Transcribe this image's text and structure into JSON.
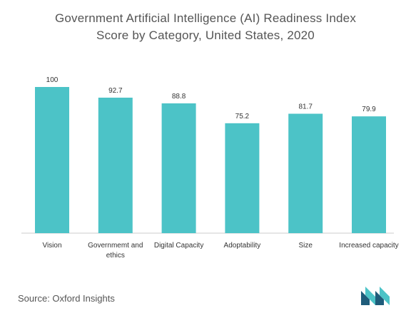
{
  "title_line1": "Government Artificial Intelligence (AI) Readiness Index",
  "title_line2": "Score by Category, United States, 2020",
  "source": "Source: Oxford Insights",
  "chart_data": {
    "type": "bar",
    "title": "Government Artificial Intelligence (AI) Readiness Index Score by Category, United States, 2020",
    "categories": [
      [
        "Vision"
      ],
      [
        "Governmemt and",
        "ethics"
      ],
      [
        "Digital Capacity"
      ],
      [
        "Adoptability"
      ],
      [
        "Size"
      ],
      [
        "Increased capacity"
      ]
    ],
    "values": [
      100,
      92.7,
      88.8,
      75.2,
      81.7,
      79.9
    ],
    "value_labels": [
      "100",
      "92.7",
      "88.8",
      "75.2",
      "81.7",
      "79.9"
    ],
    "ylim": [
      0,
      100
    ],
    "grid": false,
    "bar_color": "#4cc3c7",
    "axis_color": "#cccccc"
  },
  "colors": {
    "title": "#555555",
    "source": "#555555",
    "logo_dark": "#1f5c7a",
    "logo_teal": "#4cc3c7"
  },
  "logo_icon": "mordor-logo-icon"
}
